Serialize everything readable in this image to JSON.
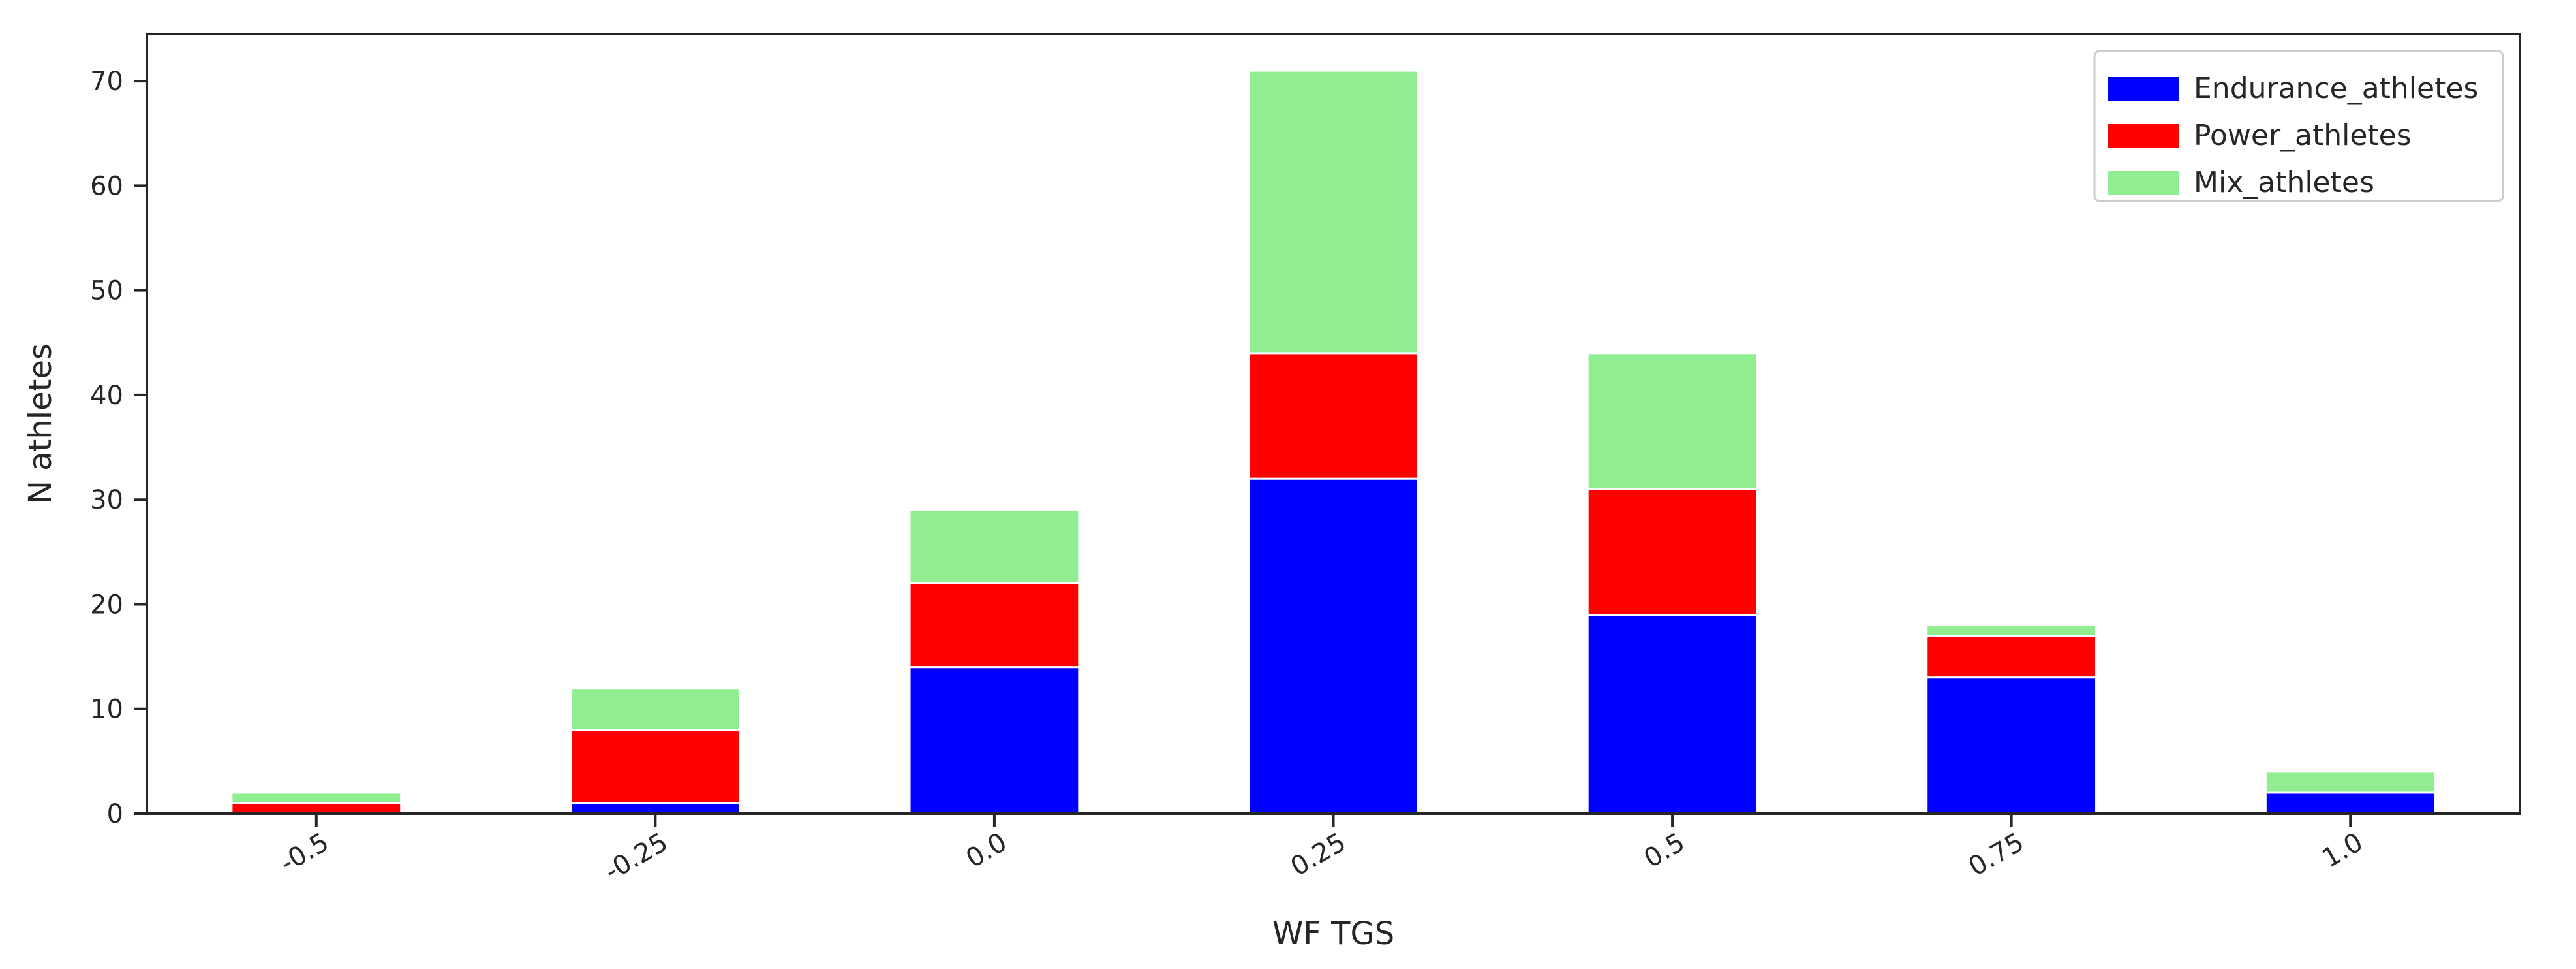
{
  "chart_data": {
    "type": "bar",
    "stacked": true,
    "categories": [
      "-0.5",
      "-0.25",
      "0.0",
      "0.25",
      "0.5",
      "0.75",
      "1.0"
    ],
    "series": [
      {
        "name": "Endurance_athletes",
        "color": "#0000ff",
        "values": [
          0,
          1,
          14,
          32,
          19,
          13,
          2
        ]
      },
      {
        "name": "Power_athletes",
        "color": "#ff0000",
        "values": [
          1,
          7,
          8,
          12,
          12,
          4,
          0
        ]
      },
      {
        "name": "Mix_athletes",
        "color": "#90ee90",
        "values": [
          1,
          4,
          7,
          27,
          13,
          1,
          2
        ]
      }
    ],
    "xlabel": "WF TGS",
    "ylabel": "N athletes",
    "ylim": [
      0,
      74.5
    ],
    "yticks": [
      0,
      10,
      20,
      30,
      40,
      50,
      60,
      70
    ],
    "grid": false,
    "legend_position": "top-right"
  }
}
